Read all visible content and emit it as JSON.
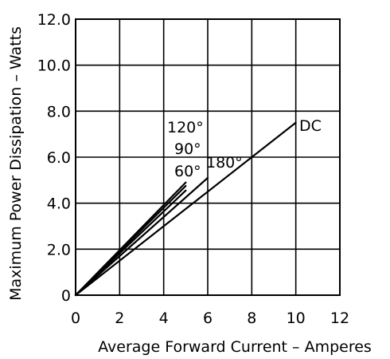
{
  "chart_data": {
    "type": "line",
    "title": "",
    "xlabel": "Average Forward Current – Amperes",
    "ylabel": "Maximum Power Dissipation – Watts",
    "xlim": [
      0,
      12
    ],
    "ylim": [
      0,
      12
    ],
    "x_ticks": [
      0,
      2,
      4,
      6,
      8,
      10,
      12
    ],
    "x_tick_labels": [
      "0",
      "2",
      "4",
      "6",
      "8",
      "10",
      "12"
    ],
    "y_ticks": [
      0,
      2,
      4,
      6,
      8,
      10,
      12
    ],
    "y_tick_labels": [
      "0",
      "2.0",
      "4.0",
      "6.0",
      "8.0",
      "10.0",
      "12.0"
    ],
    "grid": true,
    "series": [
      {
        "name": "120°",
        "points": [
          [
            0,
            0
          ],
          [
            5.0,
            4.9
          ]
        ]
      },
      {
        "name": "90°",
        "points": [
          [
            0,
            0
          ],
          [
            5.0,
            4.75
          ]
        ]
      },
      {
        "name": "60°",
        "points": [
          [
            0,
            0
          ],
          [
            5.0,
            4.55
          ]
        ]
      },
      {
        "name": "180°",
        "points": [
          [
            0,
            0
          ],
          [
            6.0,
            5.1
          ]
        ]
      },
      {
        "name": "DC",
        "points": [
          [
            0,
            0
          ],
          [
            10.0,
            7.5
          ]
        ]
      }
    ]
  }
}
